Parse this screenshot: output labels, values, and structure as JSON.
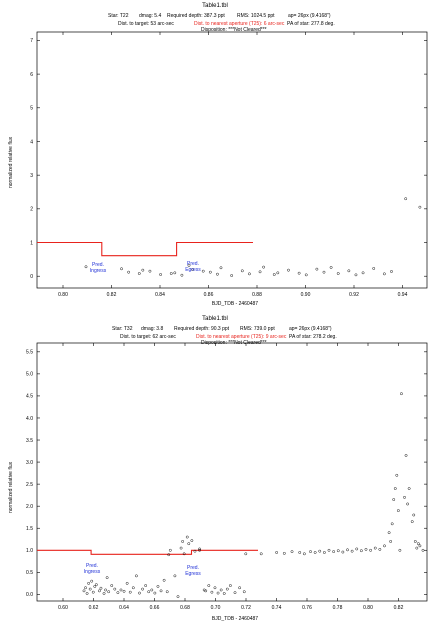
{
  "chart_data": [
    {
      "type": "scatter",
      "title": "Table1.tbl",
      "info": {
        "star": "Star: T22",
        "dmag": "dmag: 5.4",
        "depth": "Required depth: 387.3 ppt",
        "rms": "RMS: 1024.5 ppt",
        "ap": "ap= 26px (9.4168\")",
        "dist_target": "Dist. to target: 53 arc-sec",
        "dist_aperture": "Dist. to nearest aperture (T25): 6 arc-sec",
        "pa": "PA of star: 277.8 deg.",
        "disposition": "Disposition: ***Not Cleared***"
      },
      "xlabel": "BJD_TDB - 2460487",
      "ylabel": "normalized relative flux",
      "xlim": [
        0.788,
        0.848
      ],
      "ylim": [
        -0.35,
        7.25
      ],
      "xticks": [
        "0.80",
        "0.82",
        "0.84",
        "0.86",
        "0.88",
        "0.90",
        "0.92",
        "0.94"
      ],
      "xtick_values": [
        0.8,
        0.82,
        0.84,
        0.86,
        0.88,
        0.9,
        0.92,
        0.94
      ],
      "yticks": [
        "0",
        "1",
        "2",
        "3",
        "4",
        "5",
        "6",
        "7"
      ],
      "ytick_values": [
        0,
        1,
        2,
        3,
        4,
        5,
        6,
        7
      ],
      "grid": false,
      "ingress_label": [
        "Pred.",
        "Ingress"
      ],
      "egress_label": [
        "Pred.",
        "Egress"
      ],
      "model": [
        [
          0.788,
          1.0
        ],
        [
          0.8075,
          1.0
        ],
        [
          0.8075,
          0.61
        ],
        [
          0.83,
          0.61
        ],
        [
          0.83,
          1.0
        ],
        [
          0.853,
          1.0
        ]
      ],
      "points": [
        [
          0.8,
          0.28
        ],
        [
          0.805,
          0.22
        ],
        [
          0.806,
          0.12
        ],
        [
          0.8075,
          0.08
        ],
        [
          0.808,
          0.18
        ],
        [
          0.809,
          0.15
        ],
        [
          0.8105,
          0.05
        ],
        [
          0.812,
          0.08
        ],
        [
          0.8125,
          0.1
        ],
        [
          0.8135,
          0.03
        ],
        [
          0.8145,
          0.32
        ],
        [
          0.815,
          0.2
        ],
        [
          0.8165,
          0.15
        ],
        [
          0.8175,
          0.12
        ],
        [
          0.8185,
          0.06
        ],
        [
          0.819,
          0.25
        ],
        [
          0.8205,
          0.02
        ],
        [
          0.822,
          0.16
        ],
        [
          0.823,
          0.07
        ],
        [
          0.8245,
          0.13
        ],
        [
          0.825,
          0.27
        ],
        [
          0.8265,
          0.05
        ],
        [
          0.827,
          0.1
        ],
        [
          0.8285,
          0.18
        ],
        [
          0.83,
          0.09
        ],
        [
          0.831,
          0.04
        ],
        [
          0.8325,
          0.21
        ],
        [
          0.8335,
          0.12
        ],
        [
          0.8345,
          0.26
        ],
        [
          0.8355,
          0.08
        ],
        [
          0.837,
          0.16
        ],
        [
          0.838,
          0.04
        ],
        [
          0.839,
          0.1
        ],
        [
          0.8405,
          0.23
        ],
        [
          0.842,
          0.07
        ],
        [
          0.843,
          0.14
        ],
        [
          0.845,
          2.3
        ],
        [
          0.847,
          2.05
        ]
      ]
    },
    {
      "type": "scatter",
      "title": "Table1.tbl",
      "info": {
        "star": "Star: T32",
        "dmag": "dmag: 3.8",
        "depth": "Required depth: 90.3 ppt",
        "rms": "RMS: 739.0 ppt",
        "ap": "ap= 26px (9.4168\")",
        "dist_target": "Dist. to target: 62 arc-sec",
        "dist_aperture": "Dist. to nearest aperture (T25): 9 arc-sec",
        "pa": "PA of star: 278.2 deg.",
        "disposition": "Disposition: ***Not Cleared***"
      },
      "xlabel": "BJD_TDB - 2460487",
      "ylabel": "normalized relative flux",
      "xlim": [
        0.59,
        0.845
      ],
      "ylim": [
        -0.15,
        5.7
      ],
      "xticks": [
        "0.60",
        "0.62",
        "0.64",
        "0.66",
        "0.68",
        "0.70",
        "0.72",
        "0.74",
        "0.76",
        "0.78",
        "0.80",
        "0.82",
        "0.84"
      ],
      "xtick_values": [
        0.6,
        0.62,
        0.64,
        0.66,
        0.68,
        0.7,
        0.72,
        0.74,
        0.76,
        0.78,
        0.8,
        0.82,
        0.84
      ],
      "yticks": [
        "0.0",
        "0.5",
        "1.0",
        "1.5",
        "2.0",
        "2.5",
        "3.0",
        "3.5",
        "4.0",
        "4.5",
        "5.0",
        "5.5"
      ],
      "ytick_values": [
        0.0,
        0.5,
        1.0,
        1.5,
        2.0,
        2.5,
        3.0,
        3.5,
        4.0,
        4.5,
        5.0,
        5.5
      ],
      "grid": false,
      "ingress_label": [
        "Pred.",
        "Ingress"
      ],
      "egress_label": [
        "Pred.",
        "Egress"
      ],
      "model": [
        [
          0.59,
          1.0
        ],
        [
          0.625,
          1.0
        ],
        [
          0.625,
          0.91
        ],
        [
          0.69,
          0.91
        ],
        [
          0.69,
          1.0
        ],
        [
          0.733,
          1.0
        ]
      ],
      "points": [
        [
          0.625,
          0.08
        ],
        [
          0.626,
          0.15
        ],
        [
          0.627,
          0.02
        ],
        [
          0.628,
          0.25
        ],
        [
          0.629,
          0.12
        ],
        [
          0.63,
          0.3
        ],
        [
          0.631,
          0.05
        ],
        [
          0.632,
          0.18
        ],
        [
          0.633,
          0.22
        ],
        [
          0.635,
          0.08
        ],
        [
          0.636,
          0.14
        ],
        [
          0.638,
          0.02
        ],
        [
          0.639,
          0.1
        ],
        [
          0.64,
          0.38
        ],
        [
          0.641,
          0.06
        ],
        [
          0.643,
          0.2
        ],
        [
          0.645,
          0.12
        ],
        [
          0.647,
          0.04
        ],
        [
          0.649,
          0.1
        ],
        [
          0.651,
          0.07
        ],
        [
          0.653,
          0.25
        ],
        [
          0.655,
          0.05
        ],
        [
          0.657,
          0.15
        ],
        [
          0.659,
          0.42
        ],
        [
          0.661,
          0.03
        ],
        [
          0.663,
          0.12
        ],
        [
          0.665,
          0.2
        ],
        [
          0.667,
          0.06
        ],
        [
          0.669,
          0.1
        ],
        [
          0.671,
          0.03
        ],
        [
          0.673,
          0.18
        ],
        [
          0.675,
          0.08
        ],
        [
          0.677,
          0.32
        ],
        [
          0.679,
          0.06
        ],
        [
          0.68,
          0.9
        ],
        [
          0.681,
          1.0
        ],
        [
          0.684,
          0.42
        ],
        [
          0.686,
          -0.05
        ],
        [
          0.688,
          1.05
        ],
        [
          0.689,
          1.2
        ],
        [
          0.69,
          0.92
        ],
        [
          0.692,
          1.3
        ],
        [
          0.693,
          1.15
        ],
        [
          0.695,
          1.22
        ],
        [
          0.697,
          0.98
        ],
        [
          0.7,
          1.03
        ],
        [
          0.7,
          1.0
        ],
        [
          0.703,
          0.1
        ],
        [
          0.704,
          0.08
        ],
        [
          0.706,
          0.2
        ],
        [
          0.708,
          0.05
        ],
        [
          0.71,
          0.15
        ],
        [
          0.712,
          0.03
        ],
        [
          0.714,
          0.1
        ],
        [
          0.716,
          0.02
        ],
        [
          0.718,
          0.12
        ],
        [
          0.72,
          0.2
        ],
        [
          0.723,
          0.04
        ],
        [
          0.726,
          0.15
        ],
        [
          0.729,
          0.06
        ],
        [
          0.73,
          0.92
        ],
        [
          0.74,
          0.92
        ],
        [
          0.75,
          0.95
        ],
        [
          0.755,
          0.93
        ],
        [
          0.76,
          0.97
        ],
        [
          0.765,
          0.95
        ],
        [
          0.768,
          0.92
        ],
        [
          0.772,
          0.97
        ],
        [
          0.775,
          0.95
        ],
        [
          0.778,
          0.98
        ],
        [
          0.781,
          0.95
        ],
        [
          0.784,
          1.0
        ],
        [
          0.787,
          0.97
        ],
        [
          0.79,
          0.99
        ],
        [
          0.793,
          0.96
        ],
        [
          0.796,
          1.01
        ],
        [
          0.799,
          0.98
        ],
        [
          0.802,
          1.03
        ],
        [
          0.805,
          0.99
        ],
        [
          0.808,
          1.02
        ],
        [
          0.811,
          1.0
        ],
        [
          0.814,
          1.05
        ],
        [
          0.817,
          1.02
        ],
        [
          0.82,
          1.1
        ],
        [
          0.823,
          1.4
        ],
        [
          0.824,
          1.2
        ],
        [
          0.825,
          1.6
        ],
        [
          0.826,
          2.15
        ],
        [
          0.827,
          2.4
        ],
        [
          0.828,
          2.7
        ],
        [
          0.829,
          1.9
        ],
        [
          0.83,
          1.0
        ],
        [
          0.831,
          4.55
        ],
        [
          0.833,
          2.2
        ],
        [
          0.834,
          3.15
        ],
        [
          0.835,
          2.05
        ],
        [
          0.836,
          2.4
        ],
        [
          0.838,
          1.65
        ],
        [
          0.839,
          1.8
        ],
        [
          0.84,
          1.2
        ],
        [
          0.841,
          1.05
        ],
        [
          0.842,
          1.15
        ],
        [
          0.843,
          1.1
        ],
        [
          0.845,
          1.0
        ]
      ]
    }
  ]
}
